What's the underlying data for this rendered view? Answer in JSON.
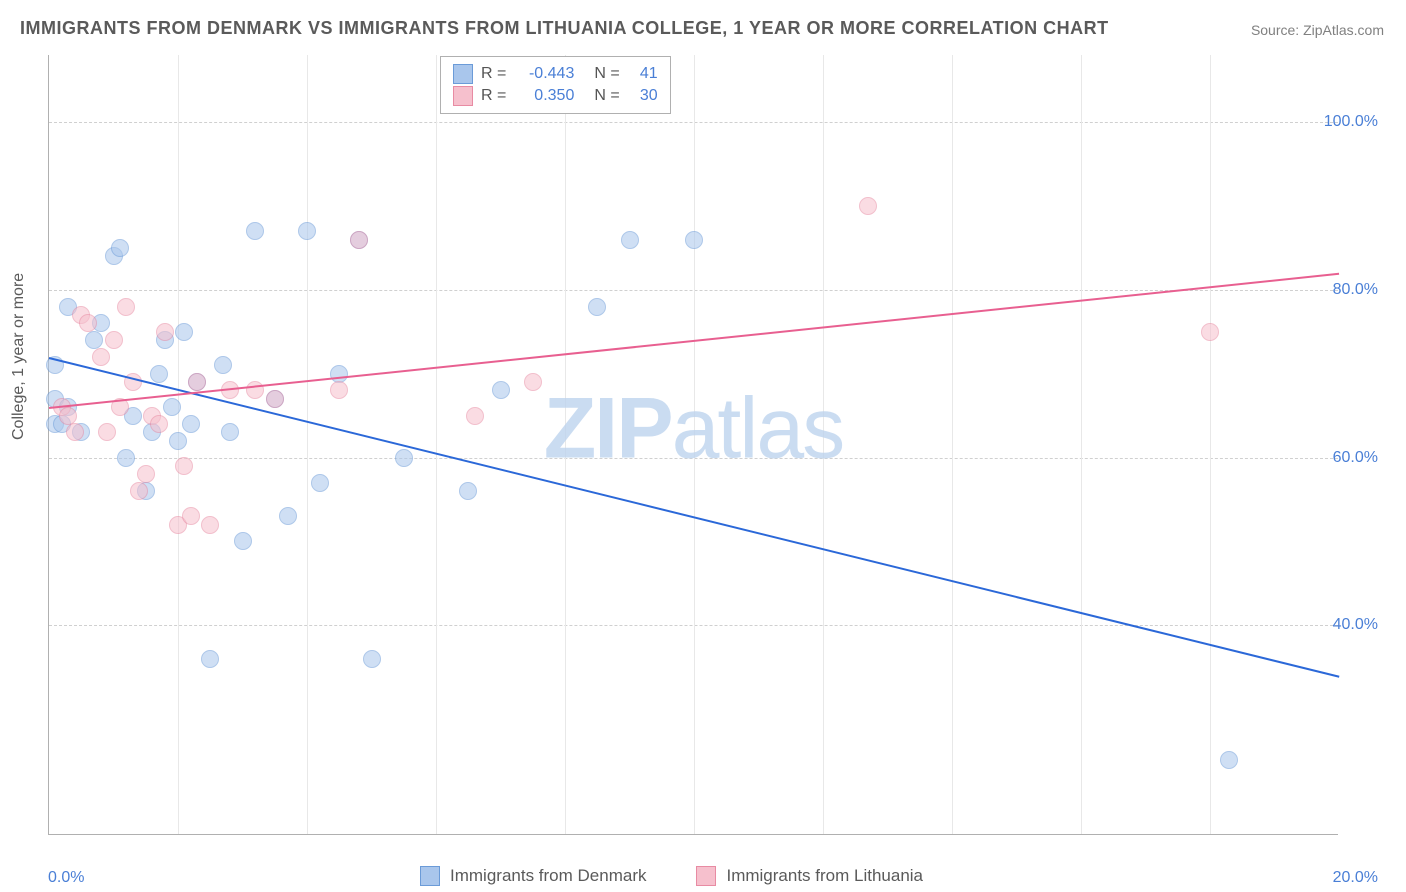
{
  "title": "IMMIGRANTS FROM DENMARK VS IMMIGRANTS FROM LITHUANIA COLLEGE, 1 YEAR OR MORE CORRELATION CHART",
  "source": "Source: ZipAtlas.com",
  "ylabel": "College, 1 year or more",
  "watermark_bold": "ZIP",
  "watermark_thin": "atlas",
  "chart": {
    "type": "scatter",
    "background_color": "#ffffff",
    "grid_color_h": "#d0d0d0",
    "grid_color_v": "#e8e8e8",
    "axis_color": "#b0b0b0",
    "tick_color": "#4a7fd6",
    "xlim": [
      0,
      20
    ],
    "ylim": [
      15,
      108
    ],
    "ytick_values": [
      40,
      60,
      80,
      100
    ],
    "ytick_labels": [
      "40.0%",
      "60.0%",
      "80.0%",
      "100.0%"
    ],
    "xtick_values": [
      0,
      20
    ],
    "xtick_labels": [
      "0.0%",
      "20.0%"
    ],
    "xgrid_values": [
      2,
      4,
      6,
      8,
      10,
      12,
      14,
      16,
      18
    ],
    "marker_radius": 9,
    "marker_opacity": 0.55,
    "line_width": 2
  },
  "series": [
    {
      "key": "denmark",
      "label": "Immigrants from Denmark",
      "fill_color": "#a9c6ec",
      "stroke_color": "#6b9bd8",
      "line_color": "#2b68d8",
      "R": "-0.443",
      "N": "41",
      "trend": {
        "x1": 0,
        "y1": 72,
        "x2": 20,
        "y2": 34
      },
      "points": [
        [
          0.1,
          71
        ],
        [
          0.1,
          67
        ],
        [
          0.1,
          64
        ],
        [
          0.2,
          64
        ],
        [
          0.3,
          78
        ],
        [
          0.3,
          66
        ],
        [
          0.5,
          63
        ],
        [
          0.7,
          74
        ],
        [
          0.8,
          76
        ],
        [
          1.0,
          84
        ],
        [
          1.1,
          85
        ],
        [
          1.2,
          60
        ],
        [
          1.3,
          65
        ],
        [
          1.5,
          56
        ],
        [
          1.6,
          63
        ],
        [
          1.7,
          70
        ],
        [
          1.8,
          74
        ],
        [
          1.9,
          66
        ],
        [
          2.0,
          62
        ],
        [
          2.1,
          75
        ],
        [
          2.2,
          64
        ],
        [
          2.3,
          69
        ],
        [
          2.5,
          36
        ],
        [
          2.7,
          71
        ],
        [
          2.8,
          63
        ],
        [
          3.0,
          50
        ],
        [
          3.2,
          87
        ],
        [
          3.5,
          67
        ],
        [
          3.7,
          53
        ],
        [
          4.0,
          87
        ],
        [
          4.2,
          57
        ],
        [
          4.5,
          70
        ],
        [
          4.8,
          86
        ],
        [
          5.0,
          36
        ],
        [
          5.5,
          60
        ],
        [
          6.5,
          56
        ],
        [
          7.0,
          68
        ],
        [
          8.5,
          78
        ],
        [
          9.0,
          86
        ],
        [
          10.0,
          86
        ],
        [
          18.3,
          24
        ]
      ]
    },
    {
      "key": "lithuania",
      "label": "Immigrants from Lithuania",
      "fill_color": "#f6c0cd",
      "stroke_color": "#e88ba3",
      "line_color": "#e85f90",
      "R": "0.350",
      "N": "30",
      "trend": {
        "x1": 0,
        "y1": 66,
        "x2": 20,
        "y2": 82
      },
      "points": [
        [
          0.2,
          66
        ],
        [
          0.3,
          65
        ],
        [
          0.4,
          63
        ],
        [
          0.5,
          77
        ],
        [
          0.6,
          76
        ],
        [
          0.8,
          72
        ],
        [
          0.9,
          63
        ],
        [
          1.0,
          74
        ],
        [
          1.1,
          66
        ],
        [
          1.2,
          78
        ],
        [
          1.3,
          69
        ],
        [
          1.4,
          56
        ],
        [
          1.5,
          58
        ],
        [
          1.6,
          65
        ],
        [
          1.7,
          64
        ],
        [
          1.8,
          75
        ],
        [
          2.0,
          52
        ],
        [
          2.1,
          59
        ],
        [
          2.2,
          53
        ],
        [
          2.3,
          69
        ],
        [
          2.5,
          52
        ],
        [
          2.8,
          68
        ],
        [
          3.2,
          68
        ],
        [
          3.5,
          67
        ],
        [
          4.5,
          68
        ],
        [
          4.8,
          86
        ],
        [
          6.6,
          65
        ],
        [
          7.5,
          69
        ],
        [
          12.7,
          90
        ],
        [
          18.0,
          75
        ]
      ]
    }
  ],
  "legend_top": {
    "r_label": "R =",
    "n_label": "N ="
  }
}
